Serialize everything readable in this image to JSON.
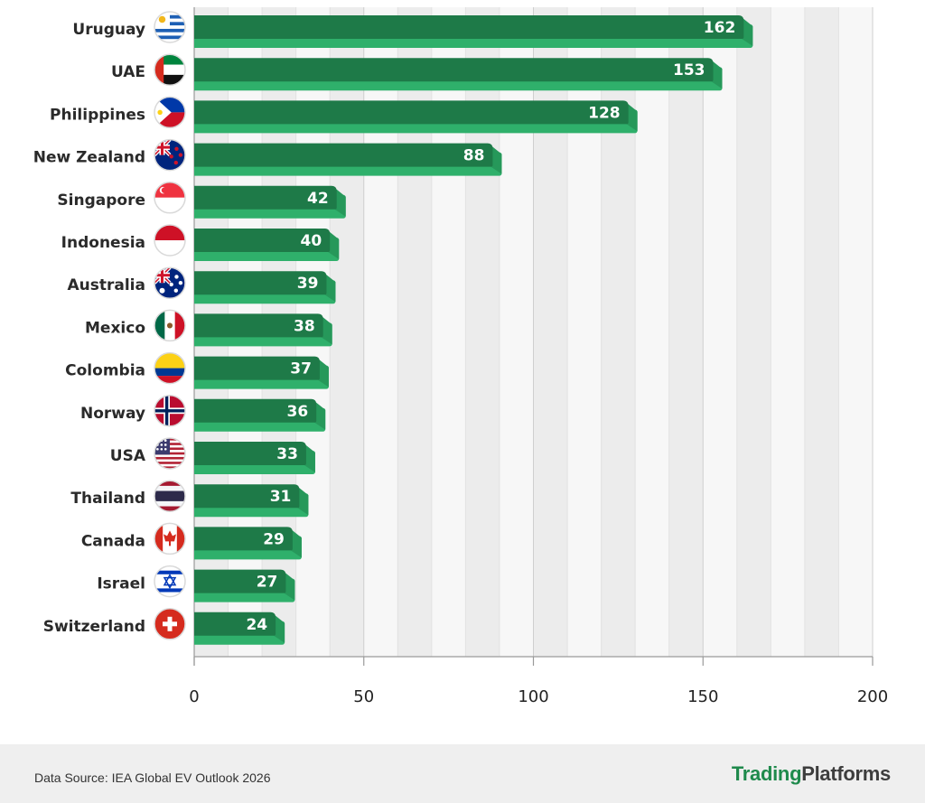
{
  "chart_data": {
    "type": "bar",
    "orientation": "horizontal",
    "categories": [
      "Uruguay",
      "UAE",
      "Philippines",
      "New Zealand",
      "Singapore",
      "Indonesia",
      "Australia",
      "Mexico",
      "Colombia",
      "Norway",
      "USA",
      "Thailand",
      "Canada",
      "Israel",
      "Switzerland"
    ],
    "values": [
      162,
      153,
      128,
      88,
      42,
      40,
      39,
      38,
      37,
      36,
      33,
      31,
      29,
      27,
      24
    ],
    "flags": [
      "uruguay-flag-icon",
      "uae-flag-icon",
      "philippines-flag-icon",
      "new-zealand-flag-icon",
      "singapore-flag-icon",
      "indonesia-flag-icon",
      "australia-flag-icon",
      "mexico-flag-icon",
      "colombia-flag-icon",
      "norway-flag-icon",
      "usa-flag-icon",
      "thailand-flag-icon",
      "canada-flag-icon",
      "israel-flag-icon",
      "switzerland-flag-icon"
    ],
    "xlim": [
      0,
      200
    ],
    "xticks": [
      "0",
      "50",
      "100",
      "150",
      "200"
    ],
    "grid": true,
    "legend": "none",
    "colors": {
      "bar_front": "#1e7a48",
      "bar_back": "#2fb06b",
      "grid": "#dcdcdc",
      "band_dark": "#ececec",
      "band_light": "#f7f7f7"
    }
  },
  "footer": {
    "source": "Data Source: IEA Global EV Outlook 2026",
    "brand_part1": "Trading",
    "brand_part2": "Platforms",
    "brand_colors": [
      "#1f8a4c",
      "#3d3d3d"
    ]
  }
}
